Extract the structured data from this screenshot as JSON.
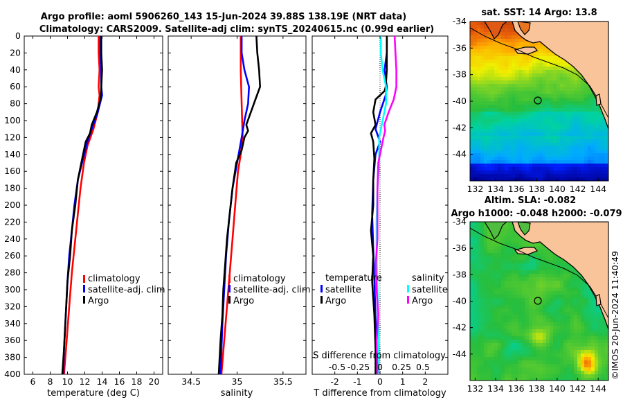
{
  "title": {
    "line1": "Argo profile: aoml 5906260_143 15-Jun-2024 39.88S 138.19E (NRT data)",
    "line2": "Climatology: CARS2009. Satellite-adj clim: synTS_20240615.nc (0.99d earlier)"
  },
  "colors": {
    "climatology": "#ff0000",
    "satellite": "#0000ff",
    "argo": "#000000",
    "sat_salinity": "#00ffff",
    "argo_salinity": "#ff00ff",
    "land": "#f9c49a"
  },
  "chart_data": [
    {
      "type": "line",
      "id": "temperature",
      "xlabel": "temperature (deg C)",
      "ylabel": "",
      "xlim": [
        5,
        21
      ],
      "ylim": [
        0,
        400
      ],
      "yreversed": true,
      "xticks": [
        6,
        8,
        10,
        12,
        14,
        16,
        18,
        20
      ],
      "yticks": [
        0,
        20,
        40,
        60,
        80,
        100,
        120,
        140,
        160,
        180,
        200,
        220,
        240,
        260,
        280,
        300,
        320,
        340,
        360,
        380,
        400
      ],
      "legend": [
        "climatology",
        "satellite-adj. clim",
        "Argo"
      ],
      "series": [
        {
          "name": "climatology",
          "points": [
            [
              13.6,
              0
            ],
            [
              13.6,
              20
            ],
            [
              13.7,
              40
            ],
            [
              13.6,
              60
            ],
            [
              13.7,
              70
            ],
            [
              13.5,
              90
            ],
            [
              13.0,
              110
            ],
            [
              12.3,
              130
            ],
            [
              11.9,
              150
            ],
            [
              11.5,
              180
            ],
            [
              11.2,
              210
            ],
            [
              10.9,
              240
            ],
            [
              10.5,
              280
            ],
            [
              10.2,
              320
            ],
            [
              9.9,
              360
            ],
            [
              9.6,
              400
            ]
          ]
        },
        {
          "name": "satellite-adj. clim",
          "points": [
            [
              13.8,
              0
            ],
            [
              13.8,
              20
            ],
            [
              13.9,
              40
            ],
            [
              13.9,
              60
            ],
            [
              14.0,
              70
            ],
            [
              13.5,
              90
            ],
            [
              12.8,
              110
            ],
            [
              12.3,
              125
            ],
            [
              11.8,
              145
            ],
            [
              11.2,
              170
            ],
            [
              10.8,
              200
            ],
            [
              10.5,
              230
            ],
            [
              10.2,
              260
            ],
            [
              10.0,
              290
            ],
            [
              9.8,
              330
            ],
            [
              9.6,
              370
            ],
            [
              9.5,
              400
            ]
          ]
        },
        {
          "name": "Argo",
          "points": [
            [
              13.9,
              0
            ],
            [
              13.9,
              20
            ],
            [
              14.0,
              40
            ],
            [
              13.9,
              60
            ],
            [
              13.9,
              65
            ],
            [
              13.8,
              75
            ],
            [
              13.4,
              90
            ],
            [
              12.8,
              105
            ],
            [
              12.6,
              115
            ],
            [
              12.1,
              125
            ],
            [
              11.7,
              145
            ],
            [
              11.2,
              170
            ],
            [
              10.9,
              200
            ],
            [
              10.5,
              230
            ],
            [
              10.3,
              260
            ],
            [
              10.0,
              290
            ],
            [
              9.8,
              330
            ],
            [
              9.6,
              370
            ],
            [
              9.4,
              400
            ]
          ]
        }
      ]
    },
    {
      "type": "line",
      "id": "salinity",
      "xlabel": "salinity",
      "ylabel": "",
      "xlim": [
        34.25,
        35.75
      ],
      "ylim": [
        0,
        400
      ],
      "yreversed": true,
      "xticks": [
        34.5,
        35,
        35.5
      ],
      "xticklabels": [
        "34.5",
        "35",
        "35.5"
      ],
      "legend": [
        "climatology",
        "satellite-adj. clim",
        "Argo"
      ],
      "series": [
        {
          "name": "climatology",
          "points": [
            [
              35.04,
              0
            ],
            [
              35.04,
              40
            ],
            [
              35.05,
              80
            ],
            [
              35.06,
              120
            ],
            [
              35.04,
              140
            ],
            [
              35.01,
              160
            ],
            [
              34.98,
              200
            ],
            [
              34.95,
              240
            ],
            [
              34.92,
              280
            ],
            [
              34.89,
              320
            ],
            [
              34.86,
              360
            ],
            [
              34.83,
              400
            ]
          ]
        },
        {
          "name": "satellite-adj. clim",
          "points": [
            [
              35.05,
              0
            ],
            [
              35.05,
              20
            ],
            [
              35.08,
              40
            ],
            [
              35.13,
              60
            ],
            [
              35.12,
              80
            ],
            [
              35.08,
              100
            ],
            [
              35.05,
              120
            ],
            [
              35.0,
              150
            ],
            [
              34.95,
              180
            ],
            [
              34.91,
              220
            ],
            [
              34.88,
              260
            ],
            [
              34.86,
              300
            ],
            [
              34.84,
              340
            ],
            [
              34.82,
              400
            ]
          ]
        },
        {
          "name": "Argo",
          "points": [
            [
              35.21,
              0
            ],
            [
              35.22,
              20
            ],
            [
              35.24,
              40
            ],
            [
              35.25,
              60
            ],
            [
              35.2,
              75
            ],
            [
              35.15,
              90
            ],
            [
              35.1,
              105
            ],
            [
              35.12,
              112
            ],
            [
              35.08,
              120
            ],
            [
              35.05,
              135
            ],
            [
              34.99,
              150
            ],
            [
              34.95,
              180
            ],
            [
              34.92,
              210
            ],
            [
              34.89,
              240
            ],
            [
              34.87,
              270
            ],
            [
              34.85,
              300
            ],
            [
              34.84,
              330
            ],
            [
              34.82,
              360
            ],
            [
              34.8,
              400
            ]
          ]
        }
      ]
    },
    {
      "type": "line",
      "id": "difference",
      "xlabel": "T difference from climatology",
      "xlabel_top": "S difference from climatology",
      "ylabel": "",
      "xlim": [
        -3,
        3
      ],
      "ylim": [
        0,
        400
      ],
      "yreversed": true,
      "xticks": [
        -2,
        -1,
        0,
        1,
        2
      ],
      "sticks": [
        -0.5,
        -0.25,
        0,
        0.25,
        0.5
      ],
      "sticklabels": [
        "-0.5",
        "-0.25",
        "0",
        "0.25",
        "0.5"
      ],
      "legend_t_title": "temperature",
      "legend_s_title": "salinity",
      "legend_t": [
        "satellite",
        "Argo"
      ],
      "legend_s": [
        "satellite",
        "Argo"
      ],
      "series": [
        {
          "name": "T satellite",
          "points": [
            [
              0.3,
              0
            ],
            [
              0.3,
              20
            ],
            [
              0.2,
              40
            ],
            [
              0.3,
              60
            ],
            [
              0.25,
              70
            ],
            [
              0.0,
              90
            ],
            [
              -0.2,
              110
            ],
            [
              0.0,
              125
            ],
            [
              -0.2,
              140
            ],
            [
              -0.3,
              170
            ],
            [
              -0.35,
              210
            ],
            [
              -0.3,
              250
            ],
            [
              -0.25,
              290
            ],
            [
              -0.2,
              330
            ],
            [
              -0.15,
              370
            ],
            [
              -0.1,
              400
            ]
          ]
        },
        {
          "name": "T Argo",
          "points": [
            [
              0.3,
              0
            ],
            [
              0.3,
              20
            ],
            [
              0.3,
              40
            ],
            [
              0.25,
              60
            ],
            [
              0.2,
              65
            ],
            [
              -0.2,
              75
            ],
            [
              -0.3,
              90
            ],
            [
              -0.2,
              105
            ],
            [
              -0.4,
              115
            ],
            [
              -0.3,
              125
            ],
            [
              -0.25,
              145
            ],
            [
              -0.3,
              170
            ],
            [
              -0.3,
              200
            ],
            [
              -0.4,
              230
            ],
            [
              -0.3,
              260
            ],
            [
              -0.35,
              290
            ],
            [
              -0.25,
              330
            ],
            [
              -0.2,
              370
            ],
            [
              -0.2,
              400
            ]
          ]
        },
        {
          "name": "S satellite",
          "points": [
            [
              0.01,
              0
            ],
            [
              0.01,
              20
            ],
            [
              0.03,
              40
            ],
            [
              0.07,
              60
            ],
            [
              0.07,
              80
            ],
            [
              0.03,
              100
            ],
            [
              -0.01,
              120
            ],
            [
              -0.01,
              150
            ],
            [
              -0.03,
              180
            ],
            [
              -0.04,
              220
            ],
            [
              -0.04,
              260
            ],
            [
              -0.03,
              300
            ],
            [
              -0.02,
              340
            ],
            [
              -0.01,
              400
            ]
          ]
        },
        {
          "name": "S Argo",
          "points": [
            [
              0.17,
              0
            ],
            [
              0.18,
              20
            ],
            [
              0.19,
              40
            ],
            [
              0.19,
              60
            ],
            [
              0.16,
              75
            ],
            [
              0.1,
              90
            ],
            [
              0.05,
              105
            ],
            [
              0.06,
              112
            ],
            [
              0.04,
              120
            ],
            [
              0.01,
              135
            ],
            [
              -0.02,
              150
            ],
            [
              -0.03,
              180
            ],
            [
              -0.03,
              210
            ],
            [
              -0.03,
              240
            ],
            [
              -0.05,
              270
            ],
            [
              -0.04,
              300
            ],
            [
              -0.02,
              330
            ],
            [
              -0.04,
              360
            ],
            [
              -0.03,
              400
            ]
          ]
        }
      ]
    },
    {
      "type": "heatmap",
      "id": "sst_map",
      "title": "sat. SST: 14 Argo: 13.8",
      "xlim": [
        131.5,
        145
      ],
      "ylim": [
        -46,
        -34
      ],
      "xticks": [
        132,
        134,
        136,
        138,
        140,
        142,
        144
      ],
      "yticks": [
        -34,
        -36,
        -38,
        -40,
        -42,
        -44
      ],
      "argo_position": [
        138.19,
        -39.88
      ]
    },
    {
      "type": "heatmap",
      "id": "sla_map",
      "title1": "Altim. SLA: -0.082",
      "title2": "Argo h1000: -0.048 h2000: -0.079",
      "xlim": [
        131.5,
        145
      ],
      "ylim": [
        -46,
        -34
      ],
      "xticks": [
        132,
        134,
        136,
        138,
        140,
        142,
        144
      ],
      "yticks": [
        -34,
        -36,
        -38,
        -40,
        -42,
        -44
      ],
      "argo_position": [
        138.19,
        -39.88
      ]
    }
  ],
  "credit": "©IMOS 20-Jun-2024 11:40:49"
}
